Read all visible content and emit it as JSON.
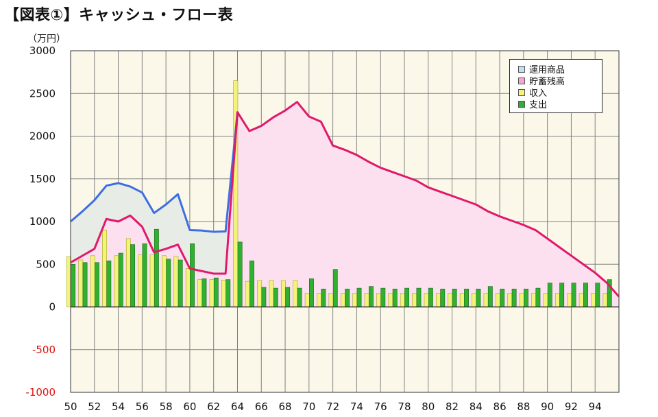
{
  "title": "【図表①】キャッシュ・フロー表",
  "unit_label": "（万円）",
  "colors": {
    "grid": "#808080",
    "plot_bg": "#fbf8ea",
    "asset_line": "#3c6fe0",
    "asset_fill": "#e8ece6",
    "savings_line": "#e0196a",
    "savings_fill": "#fde0f0",
    "income_bar": "#f3f37a",
    "income_edge": "#a3a32a",
    "expense_bar": "#2fb02f",
    "expense_edge": "#1a661a",
    "negative_tick": "#e01010"
  },
  "legend": {
    "items": [
      {
        "label": "運用商品",
        "color": "#bfe0f5"
      },
      {
        "label": "貯蓄残高",
        "color": "#f7a6cf"
      },
      {
        "label": "収入",
        "color": "#f3f37a"
      },
      {
        "label": "支出",
        "color": "#2fb02f"
      }
    ]
  },
  "chart_data": {
    "type": "bar",
    "xlim": [
      50,
      96
    ],
    "ylim": [
      -1000,
      3000
    ],
    "y_ticks": [
      3000,
      2500,
      2000,
      1500,
      1000,
      500,
      0,
      -500,
      -1000
    ],
    "x_ticks": [
      50,
      52,
      54,
      56,
      58,
      60,
      62,
      64,
      66,
      68,
      70,
      72,
      74,
      76,
      78,
      80,
      82,
      84,
      86,
      88,
      90,
      92,
      94
    ],
    "grid": true,
    "legend_position": "top-right",
    "series": [
      {
        "name": "運用商品",
        "kind": "line-area",
        "points": [
          [
            50,
            1000
          ],
          [
            51,
            1120
          ],
          [
            52,
            1250
          ],
          [
            53,
            1420
          ],
          [
            54,
            1450
          ],
          [
            55,
            1410
          ],
          [
            56,
            1340
          ],
          [
            57,
            1100
          ],
          [
            58,
            1200
          ],
          [
            59,
            1320
          ],
          [
            60,
            900
          ],
          [
            61,
            895
          ],
          [
            62,
            880
          ],
          [
            63,
            885
          ],
          [
            64,
            2280
          ]
        ]
      },
      {
        "name": "貯蓄残高",
        "kind": "line-area",
        "points": [
          [
            50,
            520
          ],
          [
            52,
            680
          ],
          [
            53,
            1030
          ],
          [
            54,
            1000
          ],
          [
            55,
            1070
          ],
          [
            56,
            940
          ],
          [
            57,
            640
          ],
          [
            58,
            680
          ],
          [
            59,
            730
          ],
          [
            60,
            450
          ],
          [
            62,
            390
          ],
          [
            63,
            390
          ],
          [
            64,
            2280
          ],
          [
            65,
            2060
          ],
          [
            66,
            2120
          ],
          [
            67,
            2220
          ],
          [
            68,
            2300
          ],
          [
            69,
            2400
          ],
          [
            70,
            2230
          ],
          [
            71,
            2170
          ],
          [
            72,
            1890
          ],
          [
            73,
            1840
          ],
          [
            74,
            1780
          ],
          [
            75,
            1700
          ],
          [
            76,
            1630
          ],
          [
            77,
            1580
          ],
          [
            78,
            1530
          ],
          [
            79,
            1480
          ],
          [
            80,
            1400
          ],
          [
            81,
            1350
          ],
          [
            82,
            1300
          ],
          [
            83,
            1250
          ],
          [
            84,
            1200
          ],
          [
            85,
            1120
          ],
          [
            86,
            1060
          ],
          [
            87,
            1010
          ],
          [
            88,
            960
          ],
          [
            89,
            900
          ],
          [
            90,
            800
          ],
          [
            91,
            700
          ],
          [
            92,
            600
          ],
          [
            93,
            500
          ],
          [
            94,
            400
          ],
          [
            95,
            280
          ],
          [
            96,
            120
          ]
        ]
      },
      {
        "name": "収入",
        "kind": "bar",
        "x": [
          50,
          51,
          52,
          53,
          54,
          55,
          56,
          57,
          58,
          59,
          60,
          61,
          62,
          63,
          64,
          65,
          66,
          67,
          68,
          69,
          70,
          71,
          72,
          73,
          74,
          75,
          76,
          77,
          78,
          79,
          80,
          81,
          82,
          83,
          84,
          85,
          86,
          87,
          88,
          89,
          90,
          91,
          92,
          93,
          94,
          95
        ],
        "values": [
          590,
          550,
          600,
          900,
          600,
          800,
          610,
          610,
          600,
          590,
          450,
          320,
          320,
          315,
          2650,
          300,
          310,
          310,
          310,
          310,
          160,
          160,
          160,
          160,
          160,
          160,
          160,
          160,
          160,
          160,
          160,
          160,
          160,
          160,
          160,
          160,
          160,
          160,
          160,
          160,
          160,
          160,
          160,
          160,
          160,
          160
        ]
      },
      {
        "name": "支出",
        "kind": "bar",
        "x": [
          50,
          51,
          52,
          53,
          54,
          55,
          56,
          57,
          58,
          59,
          60,
          61,
          62,
          63,
          64,
          65,
          66,
          67,
          68,
          69,
          70,
          71,
          72,
          73,
          74,
          75,
          76,
          77,
          78,
          79,
          80,
          81,
          82,
          83,
          84,
          85,
          86,
          87,
          88,
          89,
          90,
          91,
          92,
          93,
          94,
          95
        ],
        "values": [
          500,
          520,
          520,
          540,
          630,
          730,
          740,
          910,
          560,
          550,
          740,
          330,
          340,
          320,
          760,
          540,
          230,
          220,
          230,
          220,
          330,
          210,
          440,
          210,
          220,
          240,
          220,
          210,
          220,
          220,
          220,
          210,
          210,
          210,
          210,
          240,
          210,
          210,
          210,
          220,
          280,
          280,
          280,
          280,
          280,
          320
        ]
      }
    ]
  }
}
